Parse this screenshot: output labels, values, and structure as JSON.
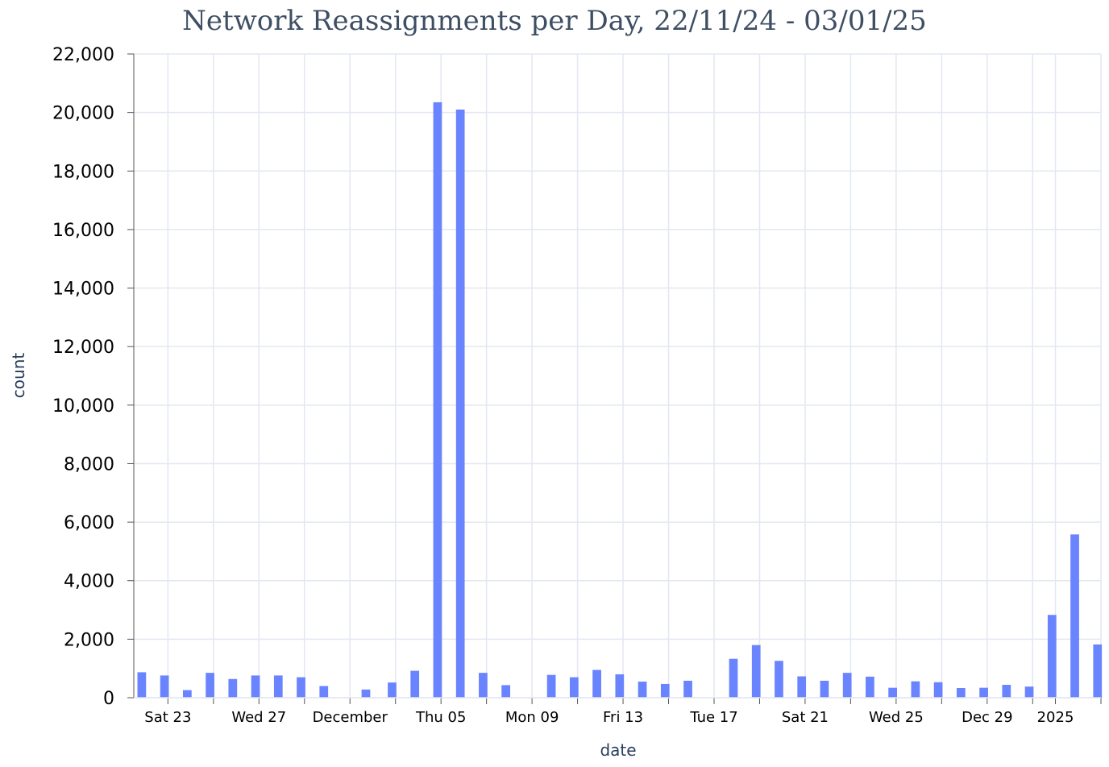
{
  "chart_data": {
    "type": "bar",
    "title": "Network Reassignments per Day, 22/11/24 - 03/01/25",
    "xlabel": "date",
    "ylabel": "count",
    "ylim": [
      0,
      22000
    ],
    "yticks": [
      0,
      2000,
      4000,
      6000,
      8000,
      10000,
      12000,
      14000,
      16000,
      18000,
      20000,
      22000
    ],
    "ytick_labels": [
      "0",
      "2,000",
      "4,000",
      "6,000",
      "8,000",
      "10,000",
      "12,000",
      "14,000",
      "16,000",
      "18,000",
      "20,000",
      "22,000"
    ],
    "xlim": [
      "2024-11-22",
      "2025-01-03"
    ],
    "xticks": [
      {
        "date": "2024-11-23",
        "label": "Sat 23"
      },
      {
        "date": "2024-11-25",
        "label": ""
      },
      {
        "date": "2024-11-27",
        "label": "Wed 27"
      },
      {
        "date": "2024-11-29",
        "label": ""
      },
      {
        "date": "2024-12-01",
        "label": "December"
      },
      {
        "date": "2024-12-03",
        "label": ""
      },
      {
        "date": "2024-12-05",
        "label": "Thu 05"
      },
      {
        "date": "2024-12-07",
        "label": ""
      },
      {
        "date": "2024-12-09",
        "label": "Mon 09"
      },
      {
        "date": "2024-12-11",
        "label": ""
      },
      {
        "date": "2024-12-13",
        "label": "Fri 13"
      },
      {
        "date": "2024-12-15",
        "label": ""
      },
      {
        "date": "2024-12-17",
        "label": "Tue 17"
      },
      {
        "date": "2024-12-19",
        "label": ""
      },
      {
        "date": "2024-12-21",
        "label": "Sat 21"
      },
      {
        "date": "2024-12-23",
        "label": ""
      },
      {
        "date": "2024-12-25",
        "label": "Wed 25"
      },
      {
        "date": "2024-12-27",
        "label": ""
      },
      {
        "date": "2024-12-29",
        "label": "Dec 29"
      },
      {
        "date": "2024-12-31",
        "label": ""
      },
      {
        "date": "2025-01-01",
        "label": "2025"
      },
      {
        "date": "2025-01-03",
        "label": ""
      }
    ],
    "grid": true,
    "bar_color": "#6a84ff",
    "series": [
      {
        "x": [
          "2024-11-22",
          "2024-11-23",
          "2024-11-24",
          "2024-11-25",
          "2024-11-26",
          "2024-11-27",
          "2024-11-28",
          "2024-11-29",
          "2024-11-30",
          "2024-12-02",
          "2024-12-03",
          "2024-12-04",
          "2024-12-05",
          "2024-12-06",
          "2024-12-07",
          "2024-12-08",
          "2024-12-10",
          "2024-12-11",
          "2024-12-12",
          "2024-12-13",
          "2024-12-14",
          "2024-12-15",
          "2024-12-16",
          "2024-12-18",
          "2024-12-19",
          "2024-12-20",
          "2024-12-21",
          "2024-12-22",
          "2024-12-23",
          "2024-12-24",
          "2024-12-25",
          "2024-12-26",
          "2024-12-27",
          "2024-12-28",
          "2024-12-29",
          "2024-12-30",
          "2024-12-31",
          "2025-01-01",
          "2025-01-02",
          "2025-01-03"
        ],
        "offset": [
          0,
          0,
          0,
          0,
          0,
          0,
          0,
          0,
          0,
          -0.15,
          0,
          0,
          0,
          0,
          0,
          0,
          0,
          0,
          0,
          0,
          0,
          0,
          0,
          0,
          0,
          0,
          0,
          0,
          0,
          0,
          0,
          0,
          0,
          0,
          0,
          0,
          0,
          0,
          0,
          0
        ],
        "values": [
          870,
          760,
          260,
          850,
          640,
          760,
          760,
          700,
          400,
          280,
          520,
          920,
          20350,
          20100,
          850,
          430,
          780,
          700,
          950,
          800,
          550,
          470,
          580,
          1330,
          1800,
          1260,
          730,
          580,
          850,
          720,
          340,
          560,
          530,
          330,
          340,
          440,
          380,
          2830,
          5580,
          1820
        ]
      }
    ]
  }
}
